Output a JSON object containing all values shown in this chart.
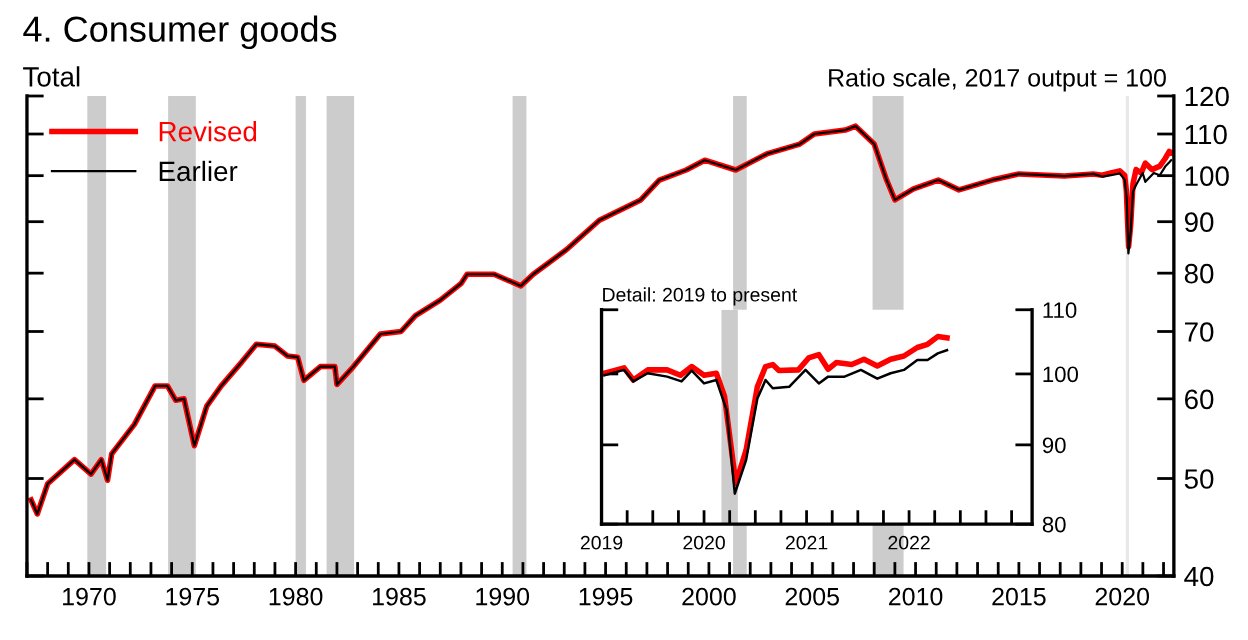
{
  "chart_data": [
    {
      "type": "line",
      "title": "4. Consumer goods",
      "subtitle": "Total",
      "annotations": [
        "Ratio scale, 2017 output = 100"
      ],
      "log": true,
      "legend": "top left",
      "xlim": [
        1967,
        2022.5
      ],
      "ylim": [
        40,
        120
      ],
      "yticks": [
        40,
        50,
        60,
        70,
        80,
        90,
        100,
        110,
        120
      ],
      "xticks": [
        {
          "value": 1967,
          "label": null
        },
        {
          "value": 1968,
          "label": null
        },
        {
          "value": 1969,
          "label": null
        },
        1970,
        {
          "value": 1971,
          "label": null
        },
        {
          "value": 1972,
          "label": null
        },
        {
          "value": 1973,
          "label": null
        },
        {
          "value": 1974,
          "label": null
        },
        1975,
        {
          "value": 1976,
          "label": null
        },
        {
          "value": 1977,
          "label": null
        },
        {
          "value": 1978,
          "label": null
        },
        {
          "value": 1979,
          "label": null
        },
        1980,
        {
          "value": 1981,
          "label": null
        },
        {
          "value": 1982,
          "label": null
        },
        {
          "value": 1983,
          "label": null
        },
        {
          "value": 1984,
          "label": null
        },
        1985,
        {
          "value": 1986,
          "label": null
        },
        {
          "value": 1987,
          "label": null
        },
        {
          "value": 1988,
          "label": null
        },
        {
          "value": 1989,
          "label": null
        },
        1990,
        {
          "value": 1991,
          "label": null
        },
        {
          "value": 1992,
          "label": null
        },
        {
          "value": 1993,
          "label": null
        },
        {
          "value": 1994,
          "label": null
        },
        1995,
        {
          "value": 1996,
          "label": null
        },
        {
          "value": 1997,
          "label": null
        },
        {
          "value": 1998,
          "label": null
        },
        {
          "value": 1999,
          "label": null
        },
        2000,
        {
          "value": 2001,
          "label": null
        },
        {
          "value": 2002,
          "label": null
        },
        {
          "value": 2003,
          "label": null
        },
        {
          "value": 2004,
          "label": null
        },
        2005,
        {
          "value": 2006,
          "label": null
        },
        {
          "value": 2007,
          "label": null
        },
        {
          "value": 2008,
          "label": null
        },
        {
          "value": 2009,
          "label": null
        },
        2010,
        {
          "value": 2011,
          "label": null
        },
        {
          "value": 2012,
          "label": null
        },
        {
          "value": 2013,
          "label": null
        },
        {
          "value": 2014,
          "label": null
        },
        2015,
        {
          "value": 2016,
          "label": null
        },
        {
          "value": 2017,
          "label": null
        },
        {
          "value": 2018,
          "label": null
        },
        {
          "value": 2019,
          "label": null
        },
        2020,
        {
          "value": 2021,
          "label": null
        },
        {
          "value": 2022,
          "label": null
        }
      ],
      "bands": [
        {
          "axis": "x",
          "from": 1969.92,
          "to": 1970.83,
          "color": "#cccccc"
        },
        {
          "axis": "x",
          "from": 1973.83,
          "to": 1975.17,
          "color": "#cccccc"
        },
        {
          "axis": "x",
          "from": 1980.0,
          "to": 1980.5,
          "color": "#cccccc"
        },
        {
          "axis": "x",
          "from": 1981.5,
          "to": 1982.83,
          "color": "#cccccc"
        },
        {
          "axis": "x",
          "from": 1990.5,
          "to": 1991.17,
          "color": "#cccccc"
        },
        {
          "axis": "x",
          "from": 2001.17,
          "to": 2001.83,
          "color": "#cccccc"
        },
        {
          "axis": "x",
          "from": 2007.92,
          "to": 2009.42,
          "color": "#cccccc"
        },
        {
          "axis": "x",
          "from": 2020.17,
          "to": 2020.33,
          "color": "#e8e8e8"
        }
      ],
      "series": [
        {
          "name": "Revised",
          "color": "#ff0000",
          "x": [
            1967.2,
            1967.5,
            1968.0,
            1969.3,
            1970.1,
            1970.6,
            1970.9,
            1971.1,
            1972.2,
            1973.2,
            1973.8,
            1974.2,
            1974.6,
            1975.1,
            1975.7,
            1976.4,
            1977.4,
            1978.1,
            1979.0,
            1979.6,
            1980.1,
            1980.4,
            1981.2,
            1981.9,
            1982.0,
            1982.8,
            1984.1,
            1985.1,
            1985.8,
            1987.0,
            1988.0,
            1988.3,
            1989.6,
            1990.9,
            1991.5,
            1993.1,
            1994.7,
            1996.7,
            1997.6,
            1998.9,
            1999.8,
            2001.3,
            2002.8,
            2004.4,
            2005.1,
            2006.6,
            2007.1,
            2008.0,
            2008.6,
            2009.0,
            2009.9,
            2011.1,
            2012.1,
            2013.7,
            2015.0,
            2017.2,
            2018.6,
            2019.03,
            2019.45,
            2019.88,
            2020.12,
            2020.2,
            2020.31,
            2020.41,
            2020.52,
            2020.67,
            2020.92,
            2021.12,
            2021.44,
            2021.82,
            2022.08,
            2022.28,
            2022.37
          ],
          "values": [
            47.6,
            46.1,
            49.4,
            52.2,
            50.5,
            52.2,
            49.8,
            52.9,
            56.6,
            61.8,
            61.8,
            59.8,
            60.0,
            53.9,
            59.0,
            61.8,
            65.3,
            68.0,
            67.7,
            66.2,
            66.0,
            62.6,
            64.6,
            64.6,
            62.0,
            64.6,
            69.6,
            70.0,
            72.6,
            75.2,
            78.1,
            79.8,
            79.8,
            77.7,
            79.8,
            84.4,
            90.3,
            94.6,
            99.0,
            101.3,
            103.6,
            101.3,
            105.1,
            107.5,
            110.0,
            111.0,
            112.0,
            107.5,
            99.0,
            94.6,
            97.0,
            99.0,
            96.8,
            99.0,
            100.4,
            99.9,
            100.4,
            100.1,
            100.6,
            101.1,
            100.1,
            96.7,
            85.0,
            89.3,
            98.1,
            101.4,
            100.6,
            102.9,
            101.4,
            102.2,
            104.0,
            105.7,
            105.5
          ]
        },
        {
          "name": "Earlier",
          "color": "#000000",
          "x": [
            1967.2,
            1967.5,
            1968.0,
            1969.3,
            1970.1,
            1970.6,
            1970.9,
            1971.1,
            1972.2,
            1973.2,
            1973.8,
            1974.2,
            1974.6,
            1975.1,
            1975.7,
            1976.4,
            1977.4,
            1978.1,
            1979.0,
            1979.6,
            1980.1,
            1980.4,
            1981.2,
            1981.9,
            1982.0,
            1982.8,
            1984.1,
            1985.1,
            1985.8,
            1987.0,
            1988.0,
            1988.3,
            1989.6,
            1990.9,
            1991.5,
            1993.1,
            1994.7,
            1996.7,
            1997.6,
            1998.9,
            1999.8,
            2001.3,
            2002.8,
            2004.4,
            2005.1,
            2006.6,
            2007.1,
            2008.0,
            2008.6,
            2009.0,
            2009.9,
            2011.1,
            2012.1,
            2013.7,
            2015.0,
            2017.2,
            2018.6,
            2019.03,
            2019.45,
            2019.88,
            2020.12,
            2020.22,
            2020.3,
            2020.41,
            2020.52,
            2020.67,
            2020.99,
            2021.12,
            2021.53,
            2021.82,
            2022.08,
            2022.28,
            2022.37
          ],
          "values": [
            47.6,
            46.1,
            49.4,
            52.2,
            50.5,
            52.2,
            49.8,
            52.9,
            56.6,
            61.8,
            61.8,
            59.8,
            60.0,
            53.9,
            59.0,
            61.8,
            65.3,
            68.0,
            67.7,
            66.2,
            66.0,
            62.6,
            64.6,
            64.6,
            62.0,
            64.6,
            69.6,
            70.0,
            72.6,
            75.2,
            78.1,
            79.8,
            79.8,
            77.7,
            79.8,
            84.4,
            90.3,
            94.6,
            99.0,
            101.3,
            103.6,
            101.3,
            105.1,
            107.5,
            110.0,
            111.0,
            112.0,
            107.5,
            99.0,
            94.6,
            97.0,
            99.0,
            96.8,
            99.0,
            100.4,
            99.9,
            100.4,
            99.8,
            100.1,
            100.5,
            99.1,
            94.8,
            83.7,
            88.0,
            96.4,
            97.9,
            100.6,
            98.6,
            100.6,
            100.1,
            102.1,
            103.1,
            103.6
          ]
        }
      ]
    },
    {
      "type": "line",
      "title": "Detail: 2019 to present",
      "log": true,
      "xlim": [
        2019.0,
        2023.2
      ],
      "ylim": [
        80,
        110
      ],
      "yticks": [
        80,
        90,
        100,
        110
      ],
      "xticks": [
        2019,
        {
          "value": 2019.25,
          "label": null
        },
        {
          "value": 2019.5,
          "label": null
        },
        {
          "value": 2019.75,
          "label": null
        },
        2020,
        {
          "value": 2020.25,
          "label": null
        },
        {
          "value": 2020.5,
          "label": null
        },
        {
          "value": 2020.75,
          "label": null
        },
        2021,
        {
          "value": 2021.25,
          "label": null
        },
        {
          "value": 2021.5,
          "label": null
        },
        {
          "value": 2021.75,
          "label": null
        },
        2022,
        {
          "value": 2022.25,
          "label": null
        },
        {
          "value": 2022.5,
          "label": null
        },
        {
          "value": 2022.75,
          "label": null
        },
        {
          "value": 2023.0,
          "label": null
        }
      ],
      "bands": [
        {
          "axis": "x",
          "from": 2020.17,
          "to": 2020.33,
          "color": "#cccccc"
        }
      ],
      "series": [
        {
          "color": "#ff0000",
          "x": [
            2019.03,
            2019.22,
            2019.31,
            2019.45,
            2019.64,
            2019.77,
            2019.88,
            2020.0,
            2020.12,
            2020.2,
            2020.31,
            2020.41,
            2020.52,
            2020.6,
            2020.67,
            2020.73,
            2020.92,
            2021.02,
            2021.12,
            2021.21,
            2021.29,
            2021.44,
            2021.56,
            2021.69,
            2021.82,
            2021.95,
            2022.08,
            2022.18,
            2022.28,
            2022.37
          ],
          "values": [
            100.1,
            100.9,
            99.1,
            100.6,
            100.6,
            99.8,
            101.1,
            99.8,
            100.1,
            96.7,
            85.0,
            89.3,
            98.1,
            101.1,
            101.4,
            100.5,
            100.6,
            102.4,
            102.9,
            100.7,
            101.7,
            101.4,
            102.2,
            101.2,
            102.2,
            102.7,
            104.0,
            104.5,
            105.7,
            105.5
          ]
        },
        {
          "color": "#000000",
          "x": [
            2019.03,
            2019.22,
            2019.31,
            2019.45,
            2019.64,
            2019.78,
            2019.88,
            2020.0,
            2020.12,
            2020.22,
            2020.3,
            2020.41,
            2020.52,
            2020.6,
            2020.67,
            2020.83,
            2020.99,
            2021.12,
            2021.21,
            2021.37,
            2021.53,
            2021.69,
            2021.82,
            2021.95,
            2022.08,
            2022.18,
            2022.28,
            2022.37
          ],
          "values": [
            99.8,
            100.6,
            98.9,
            100.1,
            99.6,
            98.9,
            100.5,
            98.6,
            99.1,
            94.8,
            83.7,
            88.0,
            96.4,
            99.1,
            97.9,
            98.1,
            100.6,
            98.6,
            99.6,
            99.6,
            100.6,
            99.3,
            100.1,
            100.6,
            102.1,
            102.1,
            103.1,
            103.6
          ]
        }
      ]
    }
  ]
}
